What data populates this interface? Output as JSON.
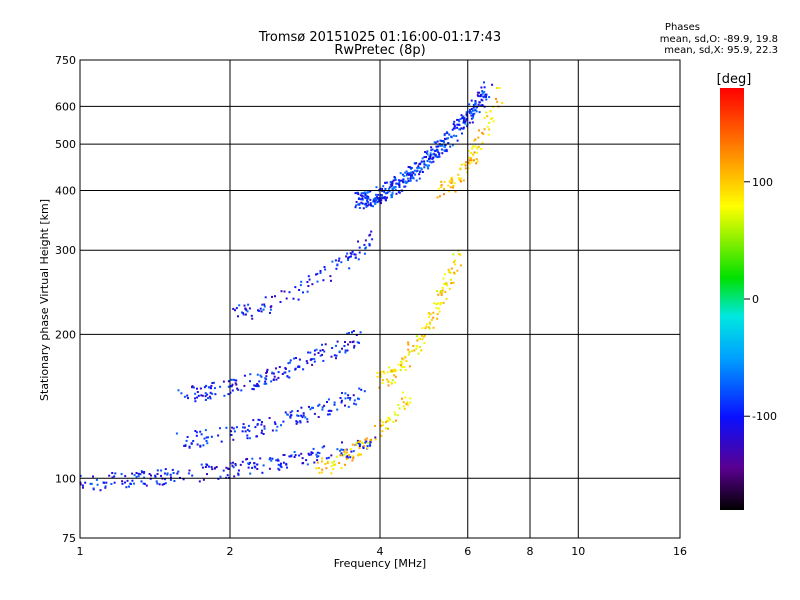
{
  "chart_data": {
    "type": "scatter",
    "title": "Tromsø 20151025 01:16:00-01:17:43",
    "subtitle": "RwPretec (8p)",
    "xlabel": "Frequency [MHz]",
    "ylabel": "Stationary phase Virtual Height [km]",
    "x_scale": "log",
    "y_scale": "log",
    "xlim": [
      1,
      16
    ],
    "ylim": [
      75,
      750
    ],
    "x_ticks": [
      1,
      2,
      4,
      6,
      8,
      10,
      16
    ],
    "y_ticks": [
      75,
      100,
      200,
      300,
      400,
      500,
      600,
      750
    ],
    "x_tick_labels": [
      "1",
      "2",
      "4",
      "6",
      "8",
      "10",
      "16"
    ],
    "y_tick_labels": [
      "75",
      "100",
      "200",
      "300",
      "400",
      "500",
      "600",
      "750"
    ],
    "grid": true,
    "phase_info": {
      "title": "Phases",
      "line_o": "mean, sd,O: -89.9, 19.8",
      "line_x": "mean, sd,X:  95.9, 22.3"
    },
    "colorbar": {
      "label": "[deg]",
      "ticks": [
        100,
        0,
        -100
      ],
      "tick_labels": [
        "100",
        "0",
        "-100"
      ],
      "range": [
        -180,
        180
      ]
    },
    "series": [
      {
        "trace": "o-low",
        "f_start": 1.0,
        "f_end": 3.9,
        "h_start": 98,
        "h_end": 118,
        "phase": -100,
        "count": 230
      },
      {
        "trace": "o-mid",
        "f_start": 1.55,
        "f_end": 3.7,
        "h_start": 120,
        "h_end": 150,
        "phase": -95,
        "count": 140
      },
      {
        "trace": "o-upper",
        "f_start": 1.6,
        "f_end": 3.7,
        "h_start": 150,
        "h_end": 200,
        "phase": -100,
        "count": 170
      },
      {
        "trace": "o-F1",
        "f_start": 2.0,
        "f_end": 3.9,
        "h_start": 220,
        "h_end": 320,
        "phase": -100,
        "count": 100
      },
      {
        "trace": "o-F2",
        "f_start": 3.6,
        "f_end": 6.6,
        "h_start": 380,
        "h_end": 650,
        "phase": -90,
        "count": 420
      },
      {
        "trace": "x-low",
        "f_start": 3.0,
        "f_end": 4.6,
        "h_start": 105,
        "h_end": 150,
        "phase": 95,
        "count": 90
      },
      {
        "trace": "x-mid",
        "f_start": 4.0,
        "f_end": 5.8,
        "h_start": 160,
        "h_end": 300,
        "phase": 90,
        "count": 140
      },
      {
        "trace": "x-F2",
        "f_start": 5.3,
        "f_end": 7.0,
        "h_start": 400,
        "h_end": 640,
        "phase": 100,
        "count": 90
      }
    ]
  }
}
